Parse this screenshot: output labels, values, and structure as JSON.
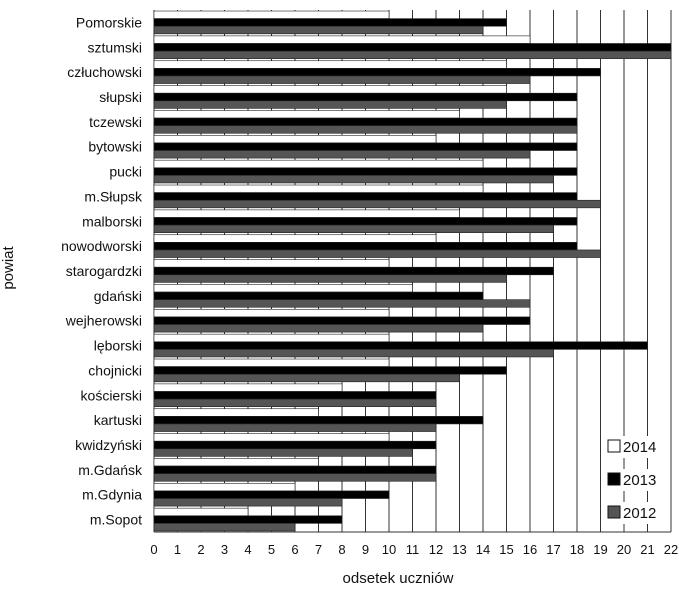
{
  "chart_data": {
    "type": "bar",
    "orientation": "horizontal",
    "ylabel": "powiat",
    "xlabel": "odsetek uczniów",
    "xlim": [
      0,
      22
    ],
    "xticks": [
      0,
      1,
      2,
      3,
      4,
      5,
      6,
      7,
      8,
      9,
      10,
      11,
      12,
      13,
      14,
      15,
      16,
      17,
      18,
      19,
      20,
      21,
      22
    ],
    "grid": "vertical",
    "legend_position": "bottom-right",
    "categories": [
      "Pomorskie",
      "sztumski",
      "człuchowski",
      "słupski",
      "tczewski",
      "bytowski",
      "pucki",
      "m.Słupsk",
      "malborski",
      "nowodworski",
      "starogardzki",
      "gdański",
      "wejherowski",
      "lęborski",
      "chojnicki",
      "kościerski",
      "kartuski",
      "kwidzyński",
      "m.Gdańsk",
      "m.Gdynia",
      "m.Sopot"
    ],
    "series": [
      {
        "name": "2014",
        "color": "#ffffff",
        "values": [
          10,
          16,
          15,
          15,
          13,
          12,
          14,
          14,
          13,
          12,
          10,
          11,
          10,
          10,
          10,
          8,
          7,
          10,
          7,
          6,
          4
        ]
      },
      {
        "name": "2013",
        "color": "#000000",
        "values": [
          15,
          22,
          19,
          18,
          18,
          18,
          18,
          18,
          18,
          18,
          17,
          14,
          16,
          21,
          15,
          12,
          14,
          12,
          12,
          10,
          8
        ]
      },
      {
        "name": "2012",
        "color": "#555555",
        "values": [
          14,
          22,
          16,
          15,
          18,
          16,
          17,
          19,
          17,
          19,
          15,
          16,
          14,
          17,
          13,
          12,
          12,
          11,
          12,
          8,
          6
        ]
      }
    ]
  }
}
